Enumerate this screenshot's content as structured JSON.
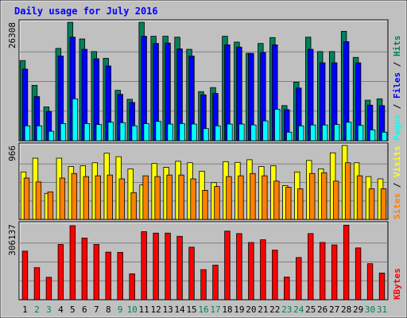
{
  "chart_data": {
    "title": "Daily usage for July 2016",
    "categories": [
      "1",
      "2",
      "3",
      "4",
      "5",
      "6",
      "7",
      "8",
      "9",
      "10",
      "11",
      "12",
      "13",
      "14",
      "15",
      "16",
      "17",
      "18",
      "19",
      "20",
      "21",
      "22",
      "23",
      "24",
      "25",
      "26",
      "27",
      "28",
      "29",
      "30",
      "31"
    ],
    "weekend_days": [
      "2",
      "3",
      "9",
      "10",
      "16",
      "17",
      "23",
      "24",
      "30",
      "31"
    ],
    "colors": {
      "pages": "#00ffff",
      "files": "#0000ff",
      "hits": "#00805c",
      "sites": "#ff8000",
      "visits": "#ffff00",
      "kbytes": "#ff0000",
      "title": "#0000ff",
      "weekday_label": "#000000",
      "weekend_label": "#00805c"
    },
    "panels": [
      {
        "type": "bar",
        "max_label": "26308",
        "legend": [
          "Pages",
          "Files",
          "Hits"
        ],
        "legend_sep": " / ",
        "ylim": [
          0,
          26308
        ],
        "series": [
          {
            "name": "Hits",
            "values": [
              17800,
              12300,
              7500,
              20500,
              26300,
              22600,
              19800,
              18300,
              11200,
              9200,
              26600,
              23200,
              23200,
              23000,
              20300,
              10900,
              11800,
              23200,
              21900,
              19400,
              21600,
              22900,
              7800,
              13000,
              23000,
              19800,
              19800,
              24300,
              18500,
              9000,
              9300
            ]
          },
          {
            "name": "Files",
            "values": [
              15900,
              9800,
              6500,
              18800,
              23000,
              20300,
              18200,
              16600,
              10300,
              8500,
              23200,
              21600,
              21700,
              20400,
              18800,
              10200,
              10500,
              21300,
              20800,
              19400,
              19600,
              21300,
              6900,
              11700,
              20300,
              17300,
              17300,
              22000,
              17300,
              7900,
              7800
            ]
          },
          {
            "name": "Pages",
            "values": [
              3300,
              3300,
              2100,
              3800,
              9300,
              3800,
              3600,
              4100,
              4000,
              3300,
              3800,
              4300,
              3700,
              3800,
              3700,
              2700,
              3300,
              3700,
              3700,
              3500,
              4400,
              7000,
              1900,
              3300,
              3500,
              3500,
              3600,
              4100,
              3400,
              2400,
              1900
            ]
          }
        ]
      },
      {
        "type": "bar",
        "max_label": "966",
        "legend": [
          "Sites",
          "Visits"
        ],
        "legend_sep": " / ",
        "ylim": [
          0,
          966
        ],
        "series": [
          {
            "name": "Visits",
            "values": [
              620,
              800,
              340,
              800,
              690,
              700,
              740,
              865,
              820,
              660,
              450,
              730,
              680,
              760,
              740,
              630,
              480,
              755,
              745,
              780,
              690,
              700,
              440,
              620,
              770,
              660,
              870,
              990,
              740,
              560,
              530
            ]
          },
          {
            "name": "Sites",
            "values": [
              540,
              490,
              360,
              540,
              600,
              560,
              570,
              580,
              530,
              350,
              570,
              560,
              580,
              580,
              530,
              380,
              430,
              560,
              570,
              600,
              570,
              500,
              420,
              400,
              600,
              610,
              500,
              740,
              570,
              400,
              400
            ]
          }
        ]
      },
      {
        "type": "bar",
        "max_label": "306137",
        "legend": [
          "KBytes"
        ],
        "legend_sep": "",
        "ylim": [
          0,
          306137
        ],
        "series": [
          {
            "name": "KBytes",
            "values": [
              197000,
              130000,
              91000,
              224000,
              300000,
              250000,
              224000,
              193000,
              192000,
              105000,
              276000,
              270000,
              270000,
              257000,
              213000,
              122000,
              140000,
              278000,
              268000,
              232000,
              243000,
              201000,
              92000,
              171000,
              268000,
              232000,
              222000,
              302000,
              210000,
              146000,
              108000
            ]
          }
        ]
      }
    ]
  }
}
